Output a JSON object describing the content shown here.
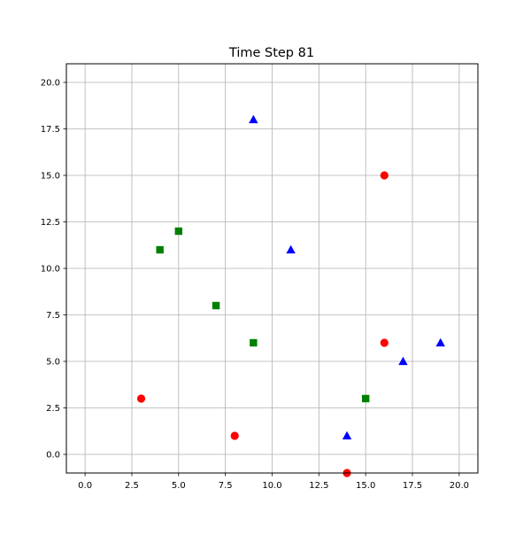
{
  "chart_data": {
    "type": "scatter",
    "title": "Time Step 81",
    "xlabel": "",
    "ylabel": "",
    "xlim": [
      -1,
      21
    ],
    "ylim": [
      -1,
      21
    ],
    "xticks": [
      0.0,
      2.5,
      5.0,
      7.5,
      10.0,
      12.5,
      15.0,
      17.5,
      20.0
    ],
    "yticks": [
      0.0,
      2.5,
      5.0,
      7.5,
      10.0,
      12.5,
      15.0,
      17.5,
      20.0
    ],
    "xtick_labels": [
      "0.0",
      "2.5",
      "5.0",
      "7.5",
      "10.0",
      "12.5",
      "15.0",
      "17.5",
      "20.0"
    ],
    "ytick_labels": [
      "0.0",
      "2.5",
      "5.0",
      "7.5",
      "10.0",
      "12.5",
      "15.0",
      "17.5",
      "20.0"
    ],
    "grid": true,
    "series": [
      {
        "marker": "circle",
        "color": "#ff0000",
        "points": [
          [
            16,
            15
          ],
          [
            16,
            6
          ],
          [
            3,
            3
          ],
          [
            8,
            1
          ],
          [
            14,
            -1
          ]
        ]
      },
      {
        "marker": "square",
        "color": "#008000",
        "points": [
          [
            5,
            12
          ],
          [
            4,
            11
          ],
          [
            7,
            8
          ],
          [
            9,
            6
          ],
          [
            15,
            3
          ]
        ]
      },
      {
        "marker": "triangle",
        "color": "#0000ff",
        "points": [
          [
            9,
            18
          ],
          [
            11,
            11
          ],
          [
            19,
            6
          ],
          [
            17,
            5
          ],
          [
            14,
            1
          ]
        ]
      }
    ]
  }
}
